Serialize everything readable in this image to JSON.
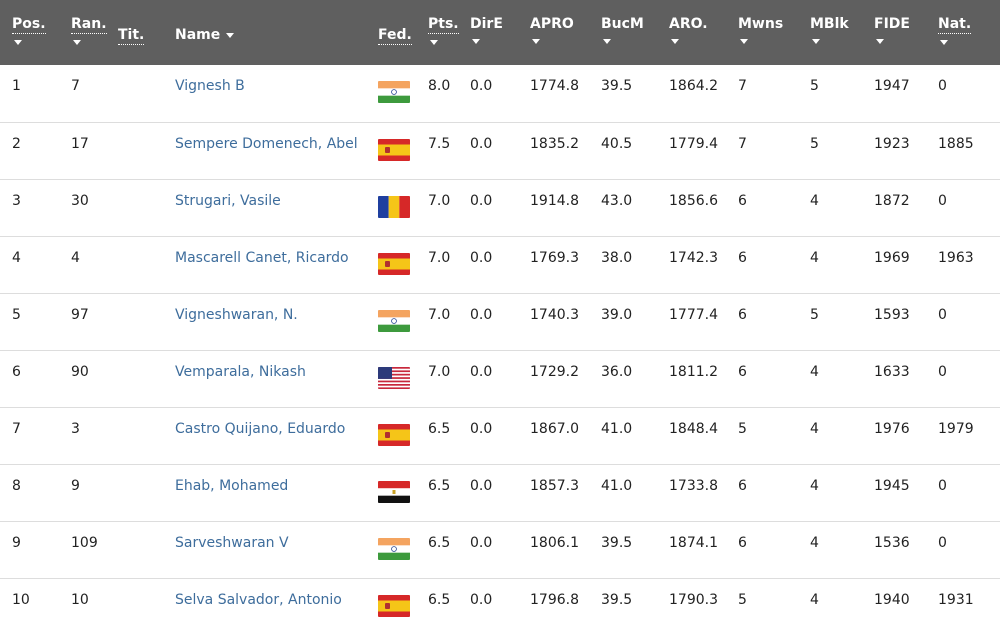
{
  "headers": {
    "pos": "Pos.",
    "ran": "Ran.",
    "tit": "Tit.",
    "name": "Name",
    "fed": "Fed.",
    "pts": "Pts.",
    "dire": "DirE",
    "apro": "APRO",
    "bucm": "BucM",
    "aro": "ARO.",
    "mwns": "Mwns",
    "mblk": "MBlk",
    "fide": "FIDE",
    "nat": "Nat."
  },
  "rows": [
    {
      "pos": "1",
      "ran": "7",
      "tit": "",
      "name": "Vignesh B",
      "fed": "IND",
      "pts": "8.0",
      "dire": "0.0",
      "apro": "1774.8",
      "bucm": "39.5",
      "aro": "1864.2",
      "mwns": "7",
      "mblk": "5",
      "fide": "1947",
      "nat": "0"
    },
    {
      "pos": "2",
      "ran": "17",
      "tit": "",
      "name": "Sempere Domenech, Abel",
      "fed": "ESP",
      "pts": "7.5",
      "dire": "0.0",
      "apro": "1835.2",
      "bucm": "40.5",
      "aro": "1779.4",
      "mwns": "7",
      "mblk": "5",
      "fide": "1923",
      "nat": "1885"
    },
    {
      "pos": "3",
      "ran": "30",
      "tit": "",
      "name": "Strugari, Vasile",
      "fed": "ROU",
      "pts": "7.0",
      "dire": "0.0",
      "apro": "1914.8",
      "bucm": "43.0",
      "aro": "1856.6",
      "mwns": "6",
      "mblk": "4",
      "fide": "1872",
      "nat": "0"
    },
    {
      "pos": "4",
      "ran": "4",
      "tit": "",
      "name": "Mascarell Canet, Ricardo",
      "fed": "ESP",
      "pts": "7.0",
      "dire": "0.0",
      "apro": "1769.3",
      "bucm": "38.0",
      "aro": "1742.3",
      "mwns": "6",
      "mblk": "4",
      "fide": "1969",
      "nat": "1963"
    },
    {
      "pos": "5",
      "ran": "97",
      "tit": "",
      "name": "Vigneshwaran, N.",
      "fed": "IND",
      "pts": "7.0",
      "dire": "0.0",
      "apro": "1740.3",
      "bucm": "39.0",
      "aro": "1777.4",
      "mwns": "6",
      "mblk": "5",
      "fide": "1593",
      "nat": "0"
    },
    {
      "pos": "6",
      "ran": "90",
      "tit": "",
      "name": "Vemparala, Nikash",
      "fed": "USA",
      "pts": "7.0",
      "dire": "0.0",
      "apro": "1729.2",
      "bucm": "36.0",
      "aro": "1811.2",
      "mwns": "6",
      "mblk": "4",
      "fide": "1633",
      "nat": "0"
    },
    {
      "pos": "7",
      "ran": "3",
      "tit": "",
      "name": "Castro Quijano, Eduardo",
      "fed": "ESP",
      "pts": "6.5",
      "dire": "0.0",
      "apro": "1867.0",
      "bucm": "41.0",
      "aro": "1848.4",
      "mwns": "5",
      "mblk": "4",
      "fide": "1976",
      "nat": "1979"
    },
    {
      "pos": "8",
      "ran": "9",
      "tit": "",
      "name": "Ehab, Mohamed",
      "fed": "EGY",
      "pts": "6.5",
      "dire": "0.0",
      "apro": "1857.3",
      "bucm": "41.0",
      "aro": "1733.8",
      "mwns": "6",
      "mblk": "4",
      "fide": "1945",
      "nat": "0"
    },
    {
      "pos": "9",
      "ran": "109",
      "tit": "",
      "name": "Sarveshwaran V",
      "fed": "IND",
      "pts": "6.5",
      "dire": "0.0",
      "apro": "1806.1",
      "bucm": "39.5",
      "aro": "1874.1",
      "mwns": "6",
      "mblk": "4",
      "fide": "1536",
      "nat": "0"
    },
    {
      "pos": "10",
      "ran": "10",
      "tit": "",
      "name": "Selva Salvador, Antonio",
      "fed": "ESP",
      "pts": "6.5",
      "dire": "0.0",
      "apro": "1796.8",
      "bucm": "39.5",
      "aro": "1790.3",
      "mwns": "5",
      "mblk": "4",
      "fide": "1940",
      "nat": "1931"
    }
  ],
  "colors": {
    "header_bg": "#5f5f5f",
    "link": "#3e6d9c",
    "row_border": "#dddddd"
  }
}
